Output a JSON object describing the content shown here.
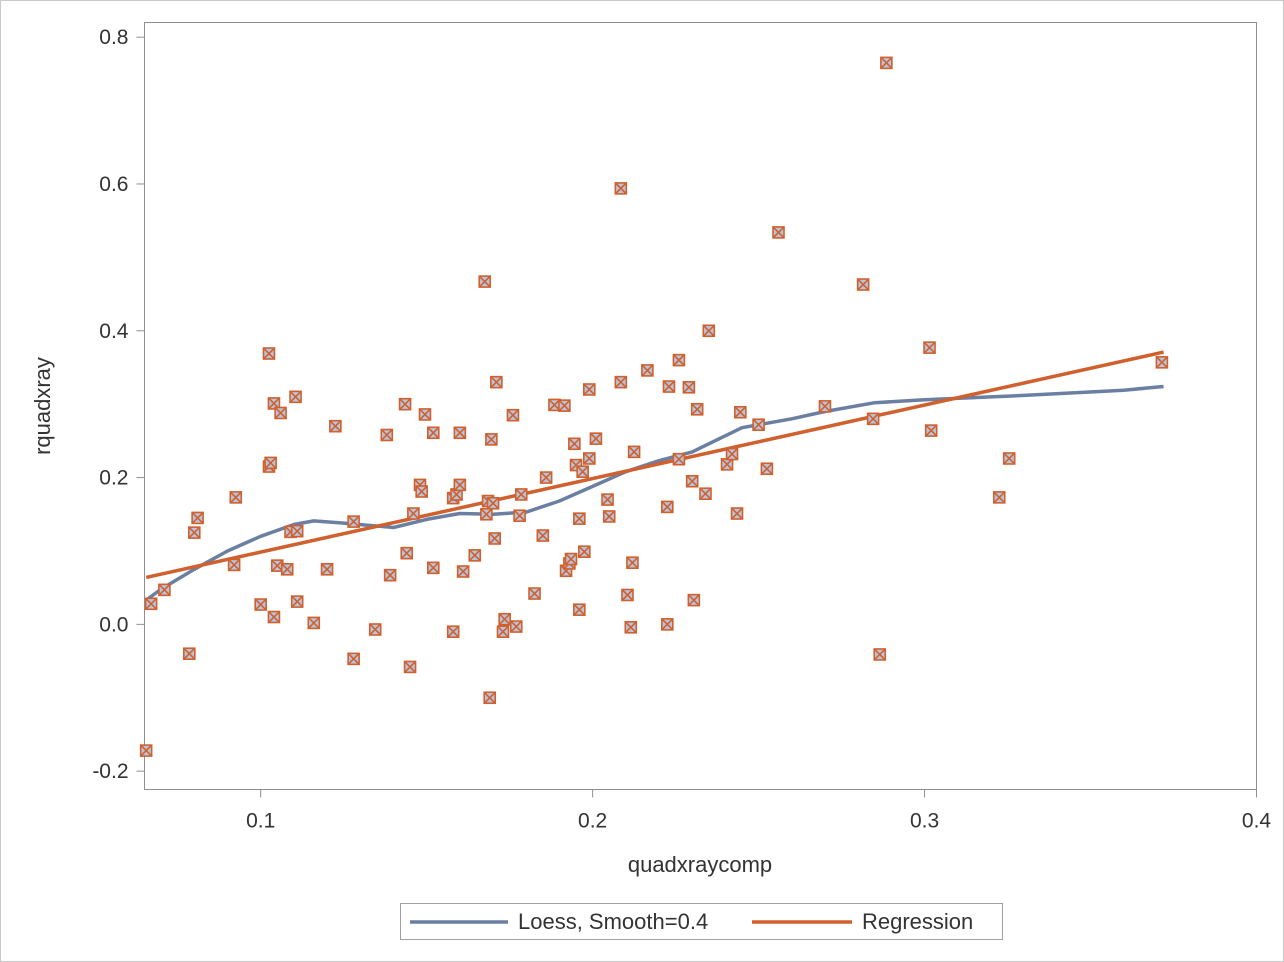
{
  "chart_data": {
    "type": "scatter",
    "title": "",
    "xlabel": "quadxraycomp",
    "ylabel": "rquadxray",
    "xlim": [
      0.065,
      0.4
    ],
    "ylim": [
      -0.225,
      0.82
    ],
    "xticks": [
      {
        "value": 0.1,
        "label": "0.1"
      },
      {
        "value": 0.2,
        "label": "0.2"
      },
      {
        "value": 0.3,
        "label": "0.3"
      },
      {
        "value": 0.4,
        "label": "0.4"
      }
    ],
    "yticks": [
      {
        "value": -0.2,
        "label": "-0.2"
      },
      {
        "value": 0.0,
        "label": "0.0"
      },
      {
        "value": 0.2,
        "label": "0.2"
      },
      {
        "value": 0.4,
        "label": "0.4"
      },
      {
        "value": 0.6,
        "label": "0.6"
      },
      {
        "value": 0.8,
        "label": "0.8"
      }
    ],
    "grid": false,
    "legend_position": "bottom-center",
    "series": [
      {
        "name": "Loess, Smooth=0.4",
        "kind": "line",
        "color": "#6b7fa3",
        "x": [
          0.0655,
          0.07,
          0.08,
          0.09,
          0.1,
          0.11,
          0.116,
          0.125,
          0.14,
          0.15,
          0.16,
          0.17,
          0.18,
          0.19,
          0.2,
          0.21,
          0.22,
          0.23,
          0.235,
          0.245,
          0.26,
          0.27,
          0.285,
          0.3,
          0.33,
          0.36,
          0.372
        ],
        "y": [
          0.033,
          0.048,
          0.075,
          0.1,
          0.12,
          0.136,
          0.141,
          0.138,
          0.132,
          0.143,
          0.151,
          0.15,
          0.153,
          0.168,
          0.188,
          0.208,
          0.223,
          0.235,
          0.246,
          0.268,
          0.28,
          0.29,
          0.302,
          0.306,
          0.312,
          0.319,
          0.324
        ]
      },
      {
        "name": "Regression",
        "kind": "line",
        "color": "#d0602d",
        "x": [
          0.0655,
          0.372
        ],
        "y": [
          0.064,
          0.371
        ]
      },
      {
        "name": "",
        "kind": "scatter",
        "color": "#d0602d",
        "marker_fill": "#b8c4dc",
        "points": [
          [
            0.0655,
            -0.172
          ],
          [
            0.067,
            0.028
          ],
          [
            0.071,
            0.047
          ],
          [
            0.0785,
            -0.04
          ],
          [
            0.08,
            0.125
          ],
          [
            0.081,
            0.145
          ],
          [
            0.092,
            0.081
          ],
          [
            0.0925,
            0.173
          ],
          [
            0.1,
            0.027
          ],
          [
            0.1025,
            0.215
          ],
          [
            0.103,
            0.22
          ],
          [
            0.1025,
            0.369
          ],
          [
            0.104,
            0.301
          ],
          [
            0.104,
            0.01
          ],
          [
            0.105,
            0.08
          ],
          [
            0.106,
            0.288
          ],
          [
            0.108,
            0.075
          ],
          [
            0.109,
            0.126
          ],
          [
            0.1105,
            0.31
          ],
          [
            0.111,
            0.127
          ],
          [
            0.111,
            0.031
          ],
          [
            0.116,
            0.002
          ],
          [
            0.12,
            0.075
          ],
          [
            0.1225,
            0.27
          ],
          [
            0.128,
            -0.047
          ],
          [
            0.128,
            0.14
          ],
          [
            0.1345,
            -0.007
          ],
          [
            0.138,
            0.258
          ],
          [
            0.139,
            0.067
          ],
          [
            0.1435,
            0.3
          ],
          [
            0.144,
            0.097
          ],
          [
            0.145,
            -0.058
          ],
          [
            0.146,
            0.151
          ],
          [
            0.148,
            0.19
          ],
          [
            0.1485,
            0.181
          ],
          [
            0.1495,
            0.286
          ],
          [
            0.152,
            0.261
          ],
          [
            0.152,
            0.077
          ],
          [
            0.158,
            -0.01
          ],
          [
            0.158,
            0.172
          ],
          [
            0.159,
            0.177
          ],
          [
            0.16,
            0.19
          ],
          [
            0.16,
            0.261
          ],
          [
            0.161,
            0.072
          ],
          [
            0.1645,
            0.094
          ],
          [
            0.1675,
            0.467
          ],
          [
            0.168,
            0.15
          ],
          [
            0.1685,
            0.168
          ],
          [
            0.169,
            -0.1
          ],
          [
            0.1695,
            0.252
          ],
          [
            0.17,
            0.165
          ],
          [
            0.1705,
            0.117
          ],
          [
            0.171,
            0.33
          ],
          [
            0.173,
            -0.01
          ],
          [
            0.1735,
            0.007
          ],
          [
            0.176,
            0.285
          ],
          [
            0.177,
            -0.003
          ],
          [
            0.178,
            0.148
          ],
          [
            0.1785,
            0.177
          ],
          [
            0.1825,
            0.042
          ],
          [
            0.185,
            0.121
          ],
          [
            0.186,
            0.2
          ],
          [
            0.1885,
            0.299
          ],
          [
            0.1915,
            0.298
          ],
          [
            0.192,
            0.073
          ],
          [
            0.193,
            0.083
          ],
          [
            0.1935,
            0.089
          ],
          [
            0.1945,
            0.246
          ],
          [
            0.195,
            0.217
          ],
          [
            0.196,
            0.144
          ],
          [
            0.196,
            0.02
          ],
          [
            0.197,
            0.208
          ],
          [
            0.1975,
            0.099
          ],
          [
            0.199,
            0.226
          ],
          [
            0.199,
            0.32
          ],
          [
            0.201,
            0.253
          ],
          [
            0.2045,
            0.17
          ],
          [
            0.205,
            0.147
          ],
          [
            0.2085,
            0.33
          ],
          [
            0.2085,
            0.594
          ],
          [
            0.2105,
            0.04
          ],
          [
            0.2115,
            -0.004
          ],
          [
            0.212,
            0.084
          ],
          [
            0.2125,
            0.235
          ],
          [
            0.2165,
            0.346
          ],
          [
            0.2225,
            0.0
          ],
          [
            0.2225,
            0.16
          ],
          [
            0.223,
            0.324
          ],
          [
            0.226,
            0.36
          ],
          [
            0.226,
            0.225
          ],
          [
            0.229,
            0.323
          ],
          [
            0.23,
            0.195
          ],
          [
            0.2305,
            0.033
          ],
          [
            0.2315,
            0.293
          ],
          [
            0.234,
            0.178
          ],
          [
            0.235,
            0.4
          ],
          [
            0.2405,
            0.218
          ],
          [
            0.242,
            0.232
          ],
          [
            0.2435,
            0.151
          ],
          [
            0.2445,
            0.289
          ],
          [
            0.25,
            0.272
          ],
          [
            0.2525,
            0.212
          ],
          [
            0.256,
            0.534
          ],
          [
            0.27,
            0.297
          ],
          [
            0.2815,
            0.463
          ],
          [
            0.2845,
            0.28
          ],
          [
            0.2865,
            -0.041
          ],
          [
            0.2885,
            0.765
          ],
          [
            0.3015,
            0.377
          ],
          [
            0.302,
            0.264
          ],
          [
            0.3225,
            0.173
          ],
          [
            0.3255,
            0.226
          ],
          [
            0.3715,
            0.357
          ]
        ]
      }
    ]
  }
}
